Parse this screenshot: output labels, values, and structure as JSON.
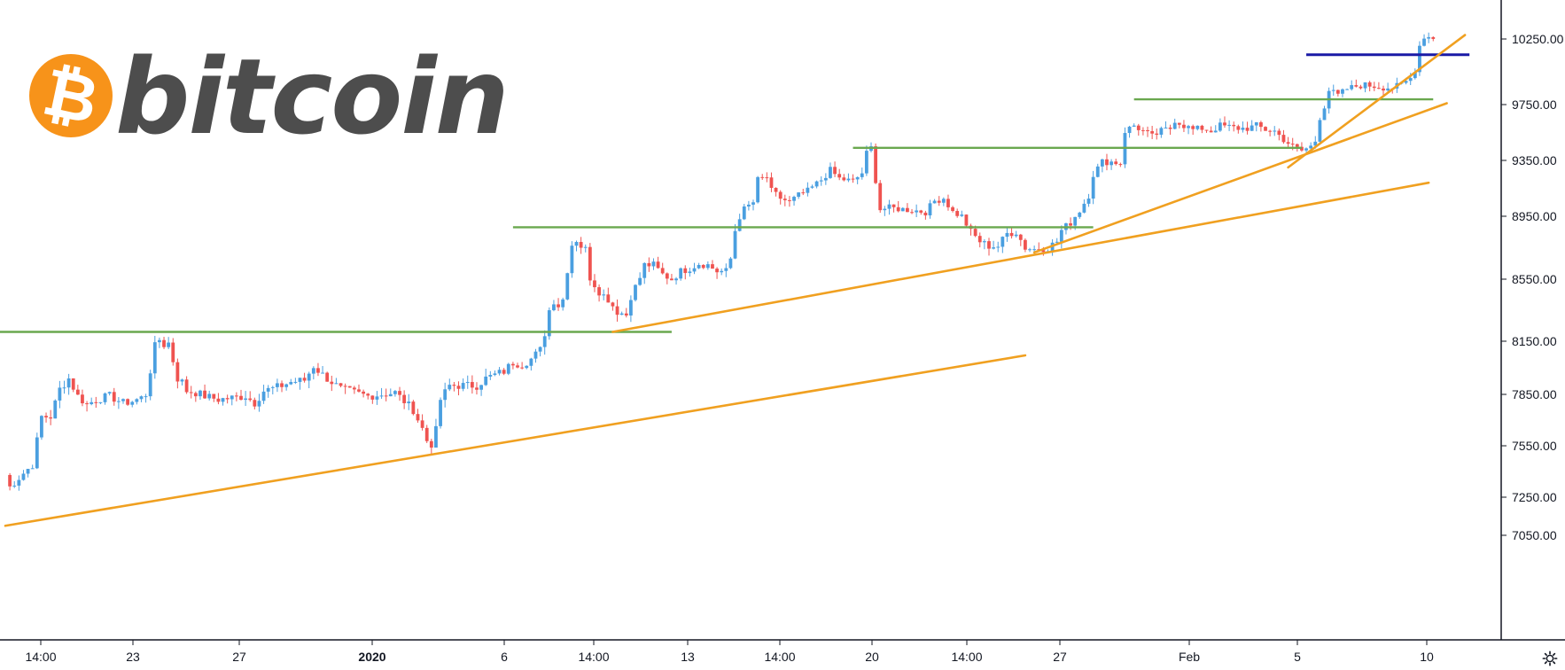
{
  "brand": {
    "text": "bitcoin",
    "logo_symbol": "₿",
    "logo_color": "#f7931a",
    "text_color": "#4d4d4d"
  },
  "chart_data": {
    "type": "candlestick",
    "y_axis": {
      "position": "right",
      "ylim": [
        6880,
        10400
      ],
      "ticks": [
        "10250.00",
        "9750.00",
        "9350.00",
        "8950.00",
        "8550.00",
        "8150.00",
        "7850.00",
        "7550.00",
        "7250.00",
        "7050.00"
      ],
      "tick_values": [
        10250,
        9750,
        9350,
        8950,
        8550,
        8150,
        7850,
        7550,
        7250,
        7050
      ]
    },
    "x_axis": {
      "ticks": [
        {
          "label": "14:00",
          "bold": false
        },
        {
          "label": "23",
          "bold": false
        },
        {
          "label": "27",
          "bold": false
        },
        {
          "label": "2020",
          "bold": true
        },
        {
          "label": "6",
          "bold": false
        },
        {
          "label": "14:00",
          "bold": false
        },
        {
          "label": "13",
          "bold": false
        },
        {
          "label": "14:00",
          "bold": false
        },
        {
          "label": "20",
          "bold": false
        },
        {
          "label": "14:00",
          "bold": false
        },
        {
          "label": "27",
          "bold": false
        },
        {
          "label": "Feb",
          "bold": false
        },
        {
          "label": "5",
          "bold": false
        },
        {
          "label": "10",
          "bold": false
        }
      ]
    },
    "up_color": "#4a9fe0",
    "down_color": "#ef5350",
    "price_path": [
      [
        0,
        7380
      ],
      [
        1,
        7310
      ],
      [
        4,
        7390
      ],
      [
        6,
        7440
      ],
      [
        8,
        7720
      ],
      [
        10,
        7720
      ],
      [
        12,
        7880
      ],
      [
        14,
        7940
      ],
      [
        16,
        7840
      ],
      [
        18,
        7790
      ],
      [
        20,
        7820
      ],
      [
        23,
        7840
      ],
      [
        26,
        7800
      ],
      [
        28,
        7810
      ],
      [
        30,
        7830
      ],
      [
        31,
        7850
      ],
      [
        33,
        8120
      ],
      [
        34,
        8160
      ],
      [
        35,
        8130
      ],
      [
        36,
        8140
      ],
      [
        38,
        7940
      ],
      [
        39,
        7920
      ],
      [
        40,
        7870
      ],
      [
        42,
        7860
      ],
      [
        44,
        7840
      ],
      [
        47,
        7820
      ],
      [
        50,
        7830
      ],
      [
        53,
        7840
      ],
      [
        55,
        7800
      ],
      [
        57,
        7870
      ],
      [
        60,
        7890
      ],
      [
        63,
        7920
      ],
      [
        66,
        7930
      ],
      [
        68,
        8010
      ],
      [
        70,
        7960
      ],
      [
        72,
        7920
      ],
      [
        74,
        7880
      ],
      [
        77,
        7860
      ],
      [
        80,
        7840
      ],
      [
        83,
        7850
      ],
      [
        86,
        7860
      ],
      [
        88,
        7810
      ],
      [
        90,
        7760
      ],
      [
        92,
        7650
      ],
      [
        93,
        7580
      ],
      [
        94,
        7560
      ],
      [
        95,
        7640
      ],
      [
        96,
        7820
      ],
      [
        98,
        7900
      ],
      [
        101,
        7900
      ],
      [
        104,
        7900
      ],
      [
        106,
        7940
      ],
      [
        108,
        7960
      ],
      [
        110,
        7980
      ],
      [
        112,
        8030
      ],
      [
        114,
        8020
      ],
      [
        116,
        8050
      ],
      [
        118,
        8100
      ],
      [
        119,
        8200
      ],
      [
        120,
        8350
      ],
      [
        121,
        8410
      ],
      [
        122,
        8380
      ],
      [
        123,
        8420
      ],
      [
        124,
        8610
      ],
      [
        125,
        8770
      ],
      [
        126,
        8800
      ],
      [
        127,
        8760
      ],
      [
        128,
        8740
      ],
      [
        129,
        8560
      ],
      [
        131,
        8470
      ],
      [
        133,
        8420
      ],
      [
        135,
        8340
      ],
      [
        137,
        8320
      ],
      [
        138,
        8440
      ],
      [
        140,
        8560
      ],
      [
        141,
        8640
      ],
      [
        143,
        8640
      ],
      [
        145,
        8580
      ],
      [
        147,
        8550
      ],
      [
        149,
        8600
      ],
      [
        151,
        8620
      ],
      [
        153,
        8650
      ],
      [
        155,
        8640
      ],
      [
        157,
        8600
      ],
      [
        159,
        8600
      ],
      [
        160,
        8680
      ],
      [
        161,
        8860
      ],
      [
        162,
        8950
      ],
      [
        163,
        9000
      ],
      [
        165,
        9050
      ],
      [
        166,
        9210
      ],
      [
        168,
        9230
      ],
      [
        169,
        9130
      ],
      [
        171,
        9080
      ],
      [
        173,
        9050
      ],
      [
        175,
        9100
      ],
      [
        177,
        9130
      ],
      [
        180,
        9210
      ],
      [
        182,
        9280
      ],
      [
        184,
        9220
      ],
      [
        187,
        9200
      ],
      [
        189,
        9260
      ],
      [
        190,
        9400
      ],
      [
        191,
        9440
      ],
      [
        192,
        9210
      ],
      [
        193,
        9000
      ],
      [
        195,
        9010
      ],
      [
        198,
        9000
      ],
      [
        201,
        8990
      ],
      [
        203,
        8980
      ],
      [
        205,
        9060
      ],
      [
        207,
        9080
      ],
      [
        209,
        8980
      ],
      [
        211,
        8950
      ],
      [
        213,
        8850
      ],
      [
        215,
        8790
      ],
      [
        217,
        8760
      ],
      [
        219,
        8760
      ],
      [
        221,
        8840
      ],
      [
        223,
        8850
      ],
      [
        225,
        8750
      ],
      [
        227,
        8740
      ],
      [
        230,
        8750
      ],
      [
        232,
        8790
      ],
      [
        233,
        8860
      ],
      [
        235,
        8910
      ],
      [
        237,
        8990
      ],
      [
        239,
        9100
      ],
      [
        240,
        9250
      ],
      [
        242,
        9340
      ],
      [
        244,
        9340
      ],
      [
        246,
        9330
      ],
      [
        247,
        9560
      ],
      [
        249,
        9600
      ],
      [
        251,
        9560
      ],
      [
        253,
        9520
      ],
      [
        255,
        9560
      ],
      [
        257,
        9580
      ],
      [
        258,
        9640
      ],
      [
        260,
        9600
      ],
      [
        262,
        9570
      ],
      [
        264,
        9580
      ],
      [
        266,
        9560
      ],
      [
        268,
        9600
      ],
      [
        270,
        9590
      ],
      [
        272,
        9580
      ],
      [
        274,
        9580
      ],
      [
        276,
        9600
      ],
      [
        278,
        9570
      ],
      [
        280,
        9560
      ],
      [
        282,
        9500
      ],
      [
        284,
        9450
      ],
      [
        286,
        9420
      ],
      [
        288,
        9450
      ],
      [
        289,
        9490
      ],
      [
        290,
        9660
      ],
      [
        291,
        9740
      ],
      [
        292,
        9860
      ],
      [
        294,
        9820
      ],
      [
        296,
        9870
      ],
      [
        298,
        9890
      ],
      [
        300,
        9900
      ],
      [
        302,
        9890
      ],
      [
        304,
        9880
      ],
      [
        306,
        9880
      ],
      [
        308,
        9900
      ],
      [
        310,
        9950
      ],
      [
        311,
        10020
      ],
      [
        312,
        10200
      ],
      [
        313,
        10270
      ],
      [
        315,
        10260
      ]
    ],
    "horizontal_levels": [
      {
        "price": 8210,
        "from": 0,
        "to": 147,
        "color": "#6aa84f"
      },
      {
        "price": 8880,
        "from": 112,
        "to": 240,
        "color": "#6aa84f"
      },
      {
        "price": 9440,
        "from": 187,
        "to": 286,
        "color": "#6aa84f"
      },
      {
        "price": 9790,
        "from": 249,
        "to": 315,
        "color": "#6aa84f"
      },
      {
        "price": 10130,
        "from": 287,
        "to": 323,
        "color": "#1a1aa6"
      }
    ],
    "trendlines": [
      {
        "from": [
          0,
          7100
        ],
        "to": [
          225,
          8070
        ],
        "color": "#f0a020"
      },
      {
        "from": [
          134,
          8210
        ],
        "to": [
          314,
          9190
        ],
        "color": "#f0a020"
      },
      {
        "from": [
          227,
          8720
        ],
        "to": [
          318,
          9760
        ],
        "color": "#f0a020"
      },
      {
        "from": [
          283,
          9300
        ],
        "to": [
          322,
          10280
        ],
        "color": "#f0a020"
      }
    ]
  }
}
